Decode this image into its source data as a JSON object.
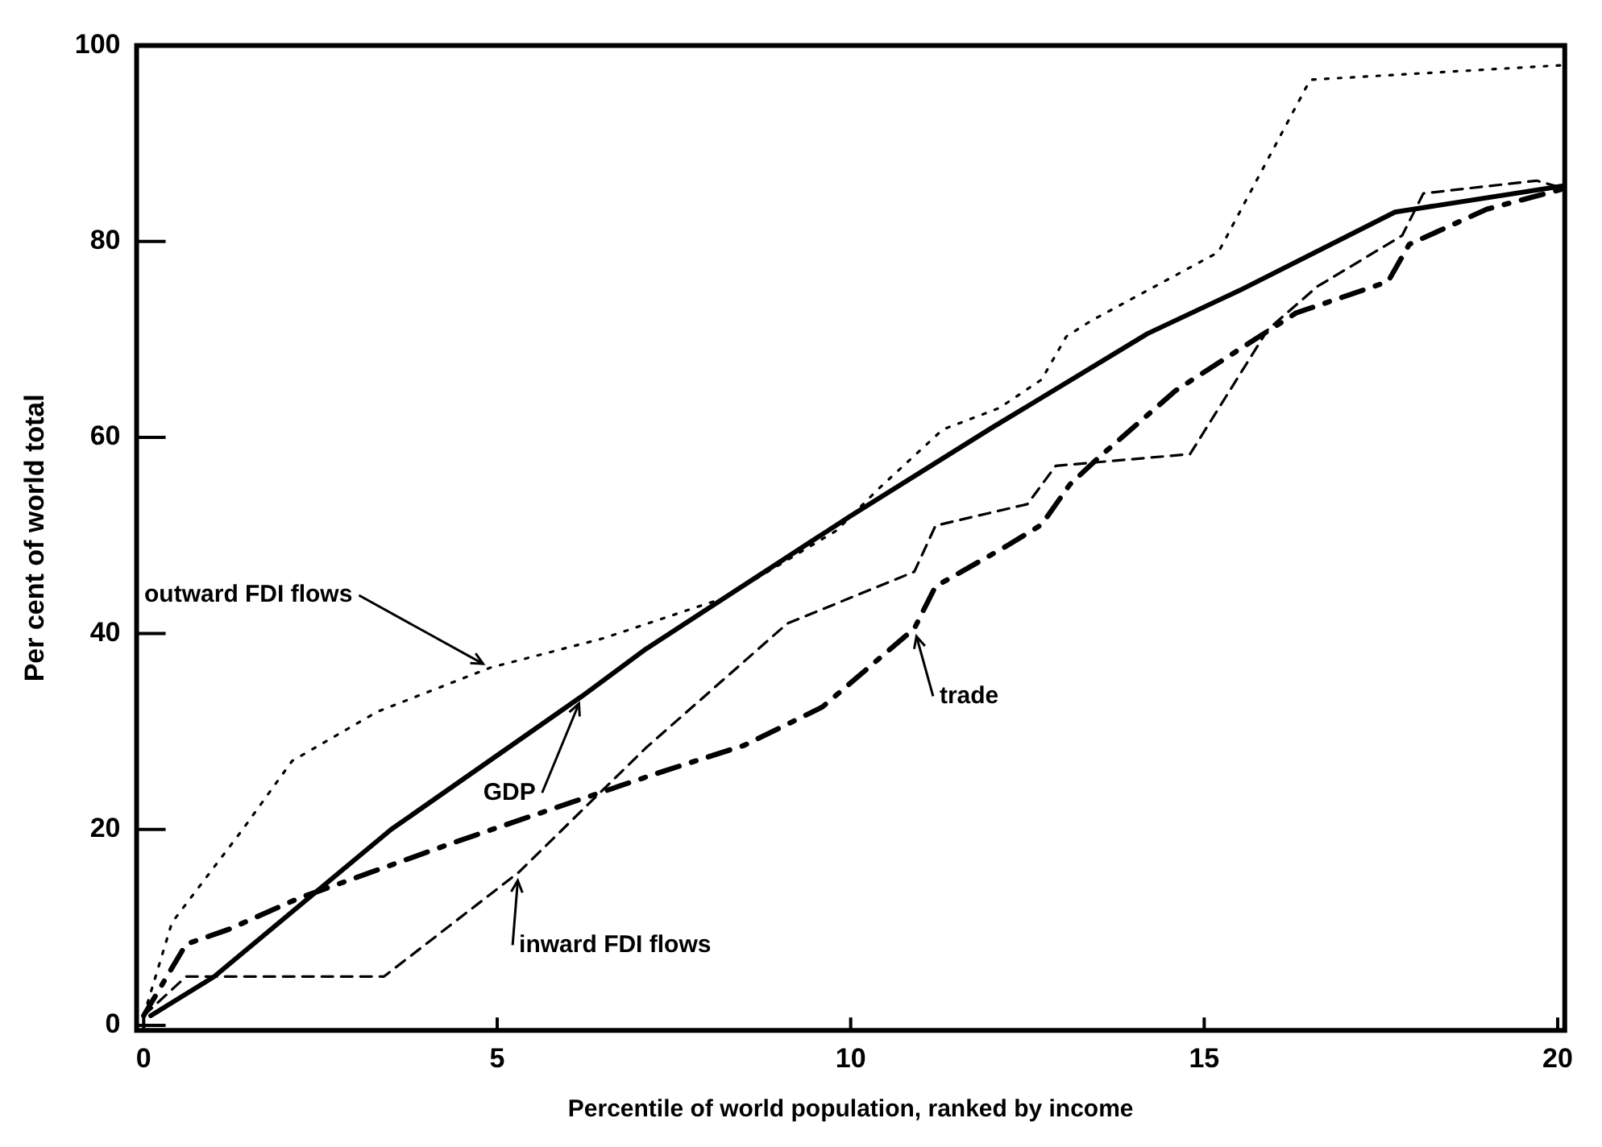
{
  "chart_data": {
    "type": "line",
    "xlabel": "Percentile of world population, ranked by income",
    "ylabel": "Per cent of world total",
    "xlim": [
      -0.1,
      20.1
    ],
    "xticks": [
      0,
      5,
      10,
      15,
      20
    ],
    "ylim": [
      -0.5,
      100
    ],
    "yticks": [
      0,
      20,
      40,
      60,
      80,
      100
    ],
    "grid": false,
    "legend": false,
    "marker": "none",
    "series": [
      {
        "name": "GDP",
        "color": "#000000",
        "line_style": "solid",
        "x": [
          0.1,
          1,
          3.5,
          6.2,
          7.1,
          10,
          12,
          14.2,
          15.5,
          17.7,
          20.1
        ],
        "values": [
          1,
          5,
          20,
          33.6,
          38.4,
          52,
          61,
          70.6,
          75,
          83,
          85.7
        ]
      },
      {
        "name": "outward FDI flows",
        "color": "#000000",
        "line_style": "dotted",
        "x": [
          0,
          0.4,
          1.4,
          2.1,
          3.3,
          4.9,
          6.5,
          8.2,
          9.8,
          10.4,
          11.3,
          12.1,
          12.7,
          13.05,
          13.4,
          15.2,
          16.5,
          20.1
        ],
        "values": [
          1,
          10.5,
          20,
          27,
          32,
          36.5,
          39.5,
          43.6,
          50.5,
          54.8,
          60.8,
          63,
          65.9,
          70.3,
          71.9,
          78.9,
          96.5,
          98
        ]
      },
      {
        "name": "inward FDI flows",
        "color": "#000000",
        "line_style": "dashed",
        "x": [
          0,
          0.6,
          3.4,
          5.3,
          7.1,
          9.1,
          10.9,
          11.2,
          12.5,
          12.9,
          14.8,
          15.9,
          16.6,
          17.8,
          18.1,
          19.7,
          20.1
        ],
        "values": [
          1,
          5,
          5,
          15.6,
          28.3,
          41,
          46.3,
          51,
          53.2,
          57.1,
          58.3,
          71,
          75.4,
          80.6,
          84.9,
          86.2,
          85.4
        ]
      },
      {
        "name": "trade",
        "color": "#000000",
        "line_style": "dashed",
        "x": [
          0,
          0.6,
          1.2,
          2.2,
          4.4,
          5.7,
          7.25,
          8.5,
          9.6,
          10.9,
          11.2,
          12.2,
          12.7,
          13.1,
          13.5,
          14.6,
          15.5,
          16.3,
          17.6,
          17.9,
          19,
          20.1
        ],
        "values": [
          1,
          8.3,
          9.8,
          13,
          18.7,
          21.9,
          25.7,
          28.6,
          32.5,
          40.5,
          44.8,
          48.9,
          51.1,
          55.2,
          57.9,
          64.8,
          69,
          72.7,
          75.9,
          79.7,
          83.3,
          85.4
        ]
      }
    ]
  }
}
